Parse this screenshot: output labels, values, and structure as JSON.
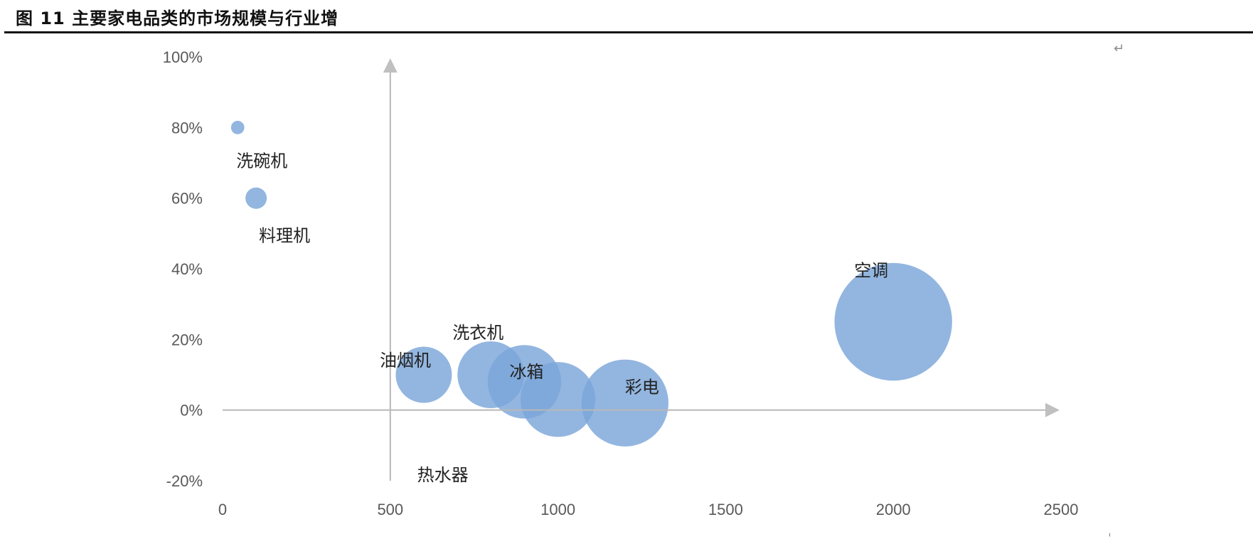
{
  "figure_title": "图 11  主要家电品类的市场规模与行业增",
  "chart_data": {
    "type": "bubble",
    "title": "",
    "xlabel": "",
    "ylabel": "",
    "xlim": [
      0,
      2500
    ],
    "ylim": [
      -0.2,
      1.0
    ],
    "x_ticks": [
      "0",
      "500",
      "1000",
      "1500",
      "2000",
      "2500"
    ],
    "y_ticks": [
      "-20%",
      "0%",
      "20%",
      "40%",
      "60%",
      "80%",
      "100%"
    ],
    "color": "#7ba6d9",
    "axis_color": "#b8b8b8",
    "points": [
      {
        "name": "洗碗机",
        "x": 45,
        "y": 0.8,
        "size": 10
      },
      {
        "name": "料理机",
        "x": 100,
        "y": 0.6,
        "size": 16
      },
      {
        "name": "油烟机",
        "x": 600,
        "y": 0.1,
        "size": 42
      },
      {
        "name": "洗衣机",
        "x": 800,
        "y": 0.1,
        "size": 50
      },
      {
        "name": "冰箱",
        "x": 900,
        "y": 0.08,
        "size": 55
      },
      {
        "name": "热水器",
        "x": 1000,
        "y": 0.03,
        "size": 56
      },
      {
        "name": "彩电",
        "x": 1200,
        "y": 0.02,
        "size": 65
      },
      {
        "name": "空调",
        "x": 2000,
        "y": 0.25,
        "size": 88
      }
    ]
  },
  "marks": {
    "return_symbol": "↵",
    "corner_tick": "ˌ"
  }
}
